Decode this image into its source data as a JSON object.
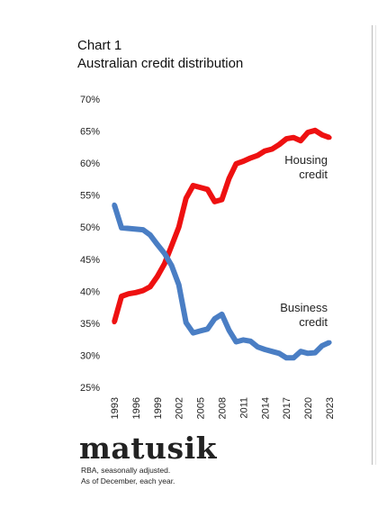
{
  "chart_data": {
    "type": "line",
    "title_line1": "Chart 1",
    "title_line2": "Australian credit distribution",
    "x": [
      1993,
      1994,
      1995,
      1996,
      1997,
      1998,
      1999,
      2000,
      2001,
      2002,
      2003,
      2004,
      2005,
      2006,
      2007,
      2008,
      2009,
      2010,
      2011,
      2012,
      2013,
      2014,
      2015,
      2016,
      2017,
      2018,
      2019,
      2020,
      2021,
      2022,
      2023
    ],
    "series": [
      {
        "name": "Housing credit",
        "label_lines": [
          "Housing",
          "credit"
        ],
        "color": "#ee1111",
        "values": [
          35.2,
          39.2,
          39.6,
          39.8,
          40.1,
          40.7,
          42.3,
          44.3,
          47.1,
          50.0,
          54.5,
          56.5,
          56.2,
          55.9,
          54.0,
          54.3,
          57.6,
          59.9,
          60.3,
          60.8,
          61.2,
          61.9,
          62.2,
          62.9,
          63.8,
          64.0,
          63.5,
          64.8,
          65.1,
          64.4,
          64.0
        ]
      },
      {
        "name": "Business credit",
        "label_lines": [
          "Business",
          "credit"
        ],
        "color": "#4a7ec4",
        "values": [
          53.5,
          49.9,
          49.8,
          49.7,
          49.6,
          48.8,
          47.3,
          45.9,
          44.0,
          41.0,
          35.1,
          33.5,
          33.8,
          34.1,
          35.7,
          36.4,
          33.9,
          32.1,
          32.4,
          32.2,
          31.3,
          30.9,
          30.6,
          30.3,
          29.6,
          29.6,
          30.6,
          30.3,
          30.4,
          31.5,
          32.0
        ]
      }
    ],
    "x_tick_labels": [
      "1993",
      "1996",
      "1999",
      "2002",
      "2005",
      "2008",
      "2011",
      "2014",
      "2017",
      "2020",
      "2023"
    ],
    "y_tick_labels": [
      "70%",
      "65%",
      "60%",
      "55%",
      "50%",
      "45%",
      "40%",
      "35%",
      "30%",
      "25%"
    ],
    "ylim": [
      25,
      70
    ],
    "grid": false
  },
  "brand": "matusik",
  "source_line1": "RBA, seasonally adjusted.",
  "source_line2": "As of December, each year."
}
